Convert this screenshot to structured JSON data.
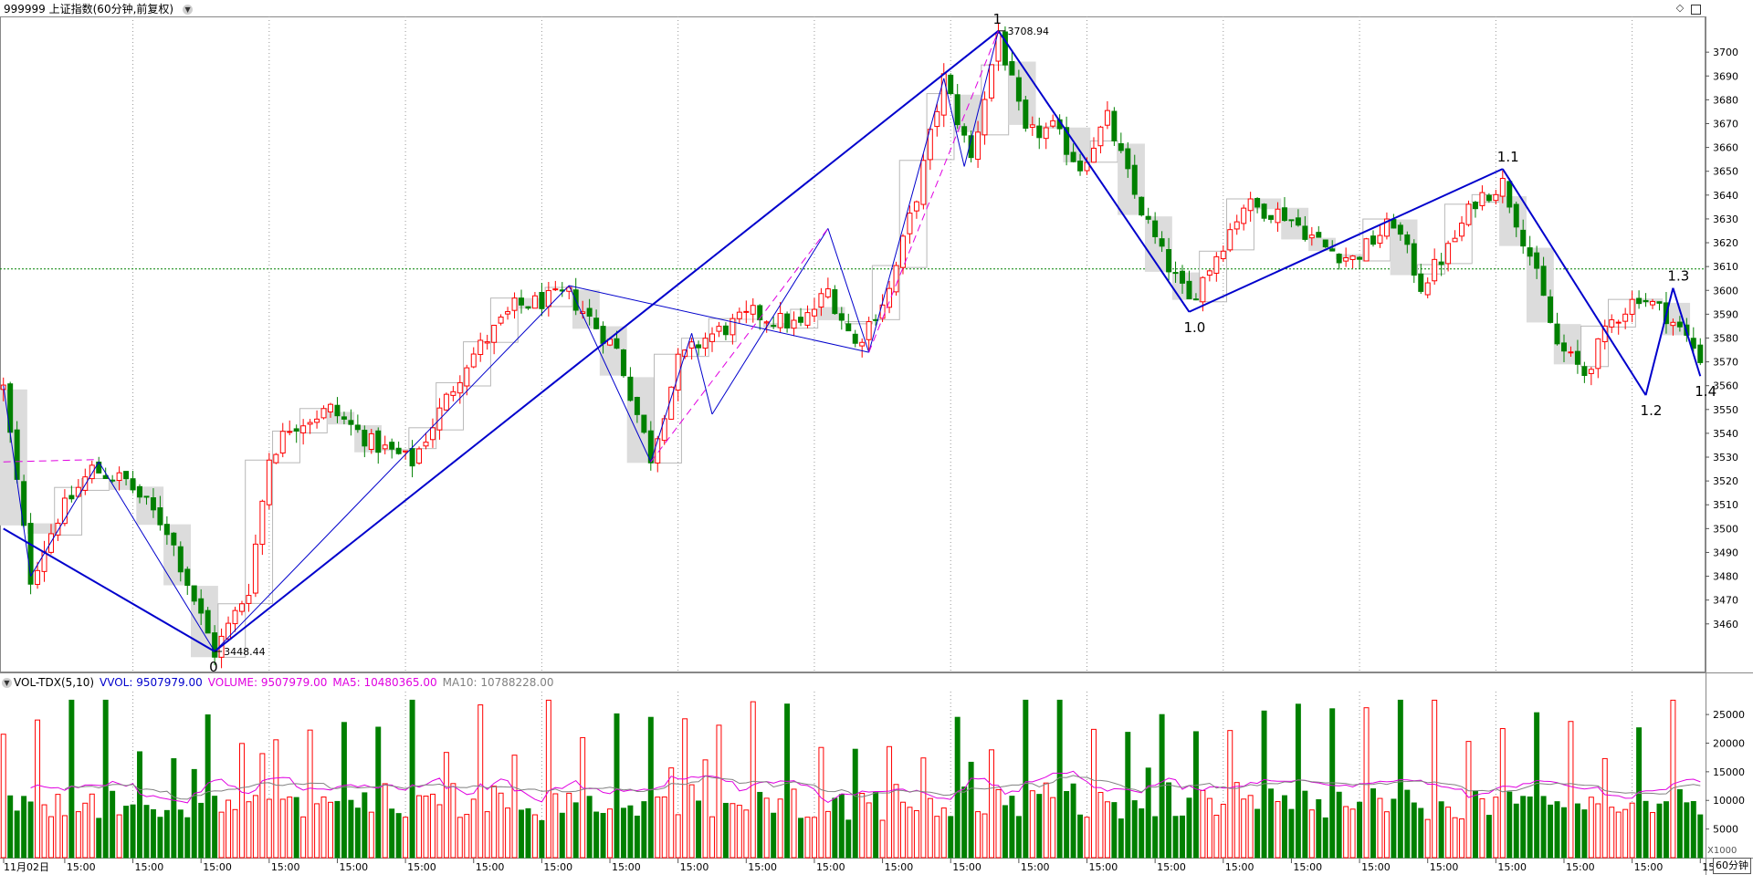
{
  "window": {
    "title": "999999 上证指数(60分钟,前复权)",
    "buttons": [
      "diamond-icon",
      "window-icon"
    ]
  },
  "indicator": {
    "name": "VOL-TDX(5,10)",
    "vvol": "VVOL: 9507979.00",
    "volume": "VOLUME: 9507979.00",
    "ma5": "MA5: 10480365.00",
    "ma10": "MA10: 10788228.00",
    "colors": {
      "vvol": "#0000cc",
      "volume": "#e000e0",
      "ma5": "#e000e0",
      "ma10": "#808080"
    }
  },
  "period_label": "60分钟",
  "unit_label": "X1000",
  "colors": {
    "up": "#ff0000",
    "down": "#008000",
    "wave": "#0000cc",
    "dash": "#e000e0",
    "ref": "#008000"
  },
  "chart_data": {
    "type": "candlestick",
    "price_axis": {
      "min": 3440,
      "max": 3715,
      "ticks": [
        3460,
        3470,
        3480,
        3490,
        3500,
        3510,
        3520,
        3530,
        3540,
        3550,
        3560,
        3570,
        3580,
        3590,
        3600,
        3610,
        3620,
        3630,
        3640,
        3650,
        3660,
        3670,
        3680,
        3690,
        3700
      ]
    },
    "volume_axis": {
      "min": 0,
      "max": 29000,
      "ticks": [
        5000,
        10000,
        15000,
        20000,
        25000
      ]
    },
    "reference_price": 3609,
    "x_labels": [
      "11月02日",
      "15:00",
      "15:00",
      "15:00",
      "15:00",
      "15:00",
      "15:00",
      "15:00",
      "15:00",
      "15:00",
      "15:00",
      "15:00",
      "15:00",
      "15:00",
      "15:00",
      "15:00",
      "15:00",
      "15:00",
      "15:00",
      "15:00",
      "15:00",
      "15:00",
      "15:00",
      "15:00",
      "15:00",
      "15:00"
    ],
    "price_labels": [
      {
        "text": "3708.94",
        "price": 3708.94,
        "bar": 146
      },
      {
        "text": "3448.44",
        "price": 3448.44,
        "bar": 31
      }
    ],
    "wave_labels": [
      {
        "text": "0",
        "bar": 31,
        "price": 3448.44,
        "pos": "below"
      },
      {
        "text": "1",
        "bar": 146,
        "price": 3708.94,
        "pos": "above"
      },
      {
        "text": "1.0",
        "bar": 174,
        "price": 3591,
        "pos": "below"
      },
      {
        "text": "1.1",
        "bar": 220,
        "price": 3651,
        "pos": "above"
      },
      {
        "text": "1.2",
        "bar": 241,
        "price": 3556,
        "pos": "below"
      },
      {
        "text": "1.3",
        "bar": 245,
        "price": 3601,
        "pos": "above"
      },
      {
        "text": "1.4",
        "bar": 249,
        "price": 3564,
        "pos": "below"
      }
    ],
    "keypoints": [
      [
        0,
        3559
      ],
      [
        4,
        3479
      ],
      [
        8,
        3505
      ],
      [
        13,
        3525
      ],
      [
        18,
        3520
      ],
      [
        24,
        3500
      ],
      [
        31,
        3448
      ],
      [
        36,
        3475
      ],
      [
        39,
        3530
      ],
      [
        42,
        3543
      ],
      [
        48,
        3550
      ],
      [
        54,
        3536
      ],
      [
        60,
        3528
      ],
      [
        68,
        3570
      ],
      [
        75,
        3593
      ],
      [
        83,
        3598
      ],
      [
        90,
        3575
      ],
      [
        95,
        3530
      ],
      [
        99,
        3570
      ],
      [
        103,
        3580
      ],
      [
        110,
        3590
      ],
      [
        117,
        3585
      ],
      [
        121,
        3600
      ],
      [
        125,
        3577
      ],
      [
        130,
        3600
      ],
      [
        134,
        3640
      ],
      [
        138,
        3689
      ],
      [
        142,
        3655
      ],
      [
        146,
        3708
      ],
      [
        150,
        3665
      ],
      [
        154,
        3668
      ],
      [
        158,
        3652
      ],
      [
        162,
        3672
      ],
      [
        166,
        3640
      ],
      [
        170,
        3615
      ],
      [
        174,
        3595
      ],
      [
        178,
        3615
      ],
      [
        182,
        3636
      ],
      [
        188,
        3632
      ],
      [
        194,
        3618
      ],
      [
        198,
        3613
      ],
      [
        204,
        3629
      ],
      [
        208,
        3602
      ],
      [
        212,
        3617
      ],
      [
        216,
        3638
      ],
      [
        220,
        3645
      ],
      [
        224,
        3615
      ],
      [
        228,
        3577
      ],
      [
        232,
        3565
      ],
      [
        236,
        3587
      ],
      [
        240,
        3598
      ],
      [
        244,
        3590
      ],
      [
        247,
        3580
      ],
      [
        249,
        3572
      ]
    ],
    "volume_sequence_note": "per-bar volumes in thousands, repeating pattern each session",
    "volume_pattern": [
      23000,
      10500,
      8900,
      9200,
      8500
    ],
    "trend_lines": [
      {
        "from": [
          0,
          3500
        ],
        "to": [
          31,
          3448.44
        ],
        "style": "solid",
        "weight": 2
      },
      {
        "from": [
          31,
          3448.44
        ],
        "to": [
          146,
          3708.94
        ],
        "style": "solid",
        "weight": 2
      },
      {
        "from": [
          146,
          3708.94
        ],
        "to": [
          174,
          3591
        ],
        "style": "solid",
        "weight": 2
      },
      {
        "from": [
          174,
          3591
        ],
        "to": [
          220,
          3651
        ],
        "style": "solid",
        "weight": 2
      },
      {
        "from": [
          220,
          3651
        ],
        "to": [
          241,
          3556
        ],
        "style": "solid",
        "weight": 2
      },
      {
        "from": [
          241,
          3556
        ],
        "to": [
          245,
          3601
        ],
        "style": "solid",
        "weight": 2
      },
      {
        "from": [
          245,
          3601
        ],
        "to": [
          249,
          3564
        ],
        "style": "solid",
        "weight": 2
      },
      {
        "from": [
          0,
          3560
        ],
        "to": [
          4,
          3480
        ],
        "style": "solid",
        "weight": 1
      },
      {
        "from": [
          4,
          3480
        ],
        "to": [
          14,
          3528
        ],
        "style": "solid",
        "weight": 1
      },
      {
        "from": [
          14,
          3528
        ],
        "to": [
          31,
          3448.44
        ],
        "style": "solid",
        "weight": 1
      },
      {
        "from": [
          31,
          3448.44
        ],
        "to": [
          83,
          3602
        ],
        "style": "solid",
        "weight": 1
      },
      {
        "from": [
          83,
          3602
        ],
        "to": [
          95,
          3528
        ],
        "style": "solid",
        "weight": 1
      },
      {
        "from": [
          95,
          3528
        ],
        "to": [
          101,
          3582
        ],
        "style": "solid",
        "weight": 1
      },
      {
        "from": [
          101,
          3582
        ],
        "to": [
          104,
          3548
        ],
        "style": "solid",
        "weight": 1
      },
      {
        "from": [
          104,
          3548
        ],
        "to": [
          121,
          3626
        ],
        "style": "solid",
        "weight": 1
      },
      {
        "from": [
          121,
          3626
        ],
        "to": [
          127,
          3574
        ],
        "style": "solid",
        "weight": 1
      },
      {
        "from": [
          127,
          3574
        ],
        "to": [
          138,
          3689
        ],
        "style": "solid",
        "weight": 1
      },
      {
        "from": [
          138,
          3689
        ],
        "to": [
          141,
          3652
        ],
        "style": "solid",
        "weight": 1
      },
      {
        "from": [
          141,
          3652
        ],
        "to": [
          146,
          3708.94
        ],
        "style": "solid",
        "weight": 1
      },
      {
        "from": [
          83,
          3602
        ],
        "to": [
          127,
          3574
        ],
        "style": "solid",
        "weight": 1
      },
      {
        "from": [
          0,
          3528
        ],
        "to": [
          14,
          3529
        ],
        "style": "dash",
        "weight": 1
      },
      {
        "from": [
          95,
          3528
        ],
        "to": [
          121,
          3626
        ],
        "style": "dash",
        "weight": 1
      },
      {
        "from": [
          127,
          3574
        ],
        "to": [
          146,
          3708.94
        ],
        "style": "dash",
        "weight": 1
      }
    ],
    "bar_count": 250
  }
}
